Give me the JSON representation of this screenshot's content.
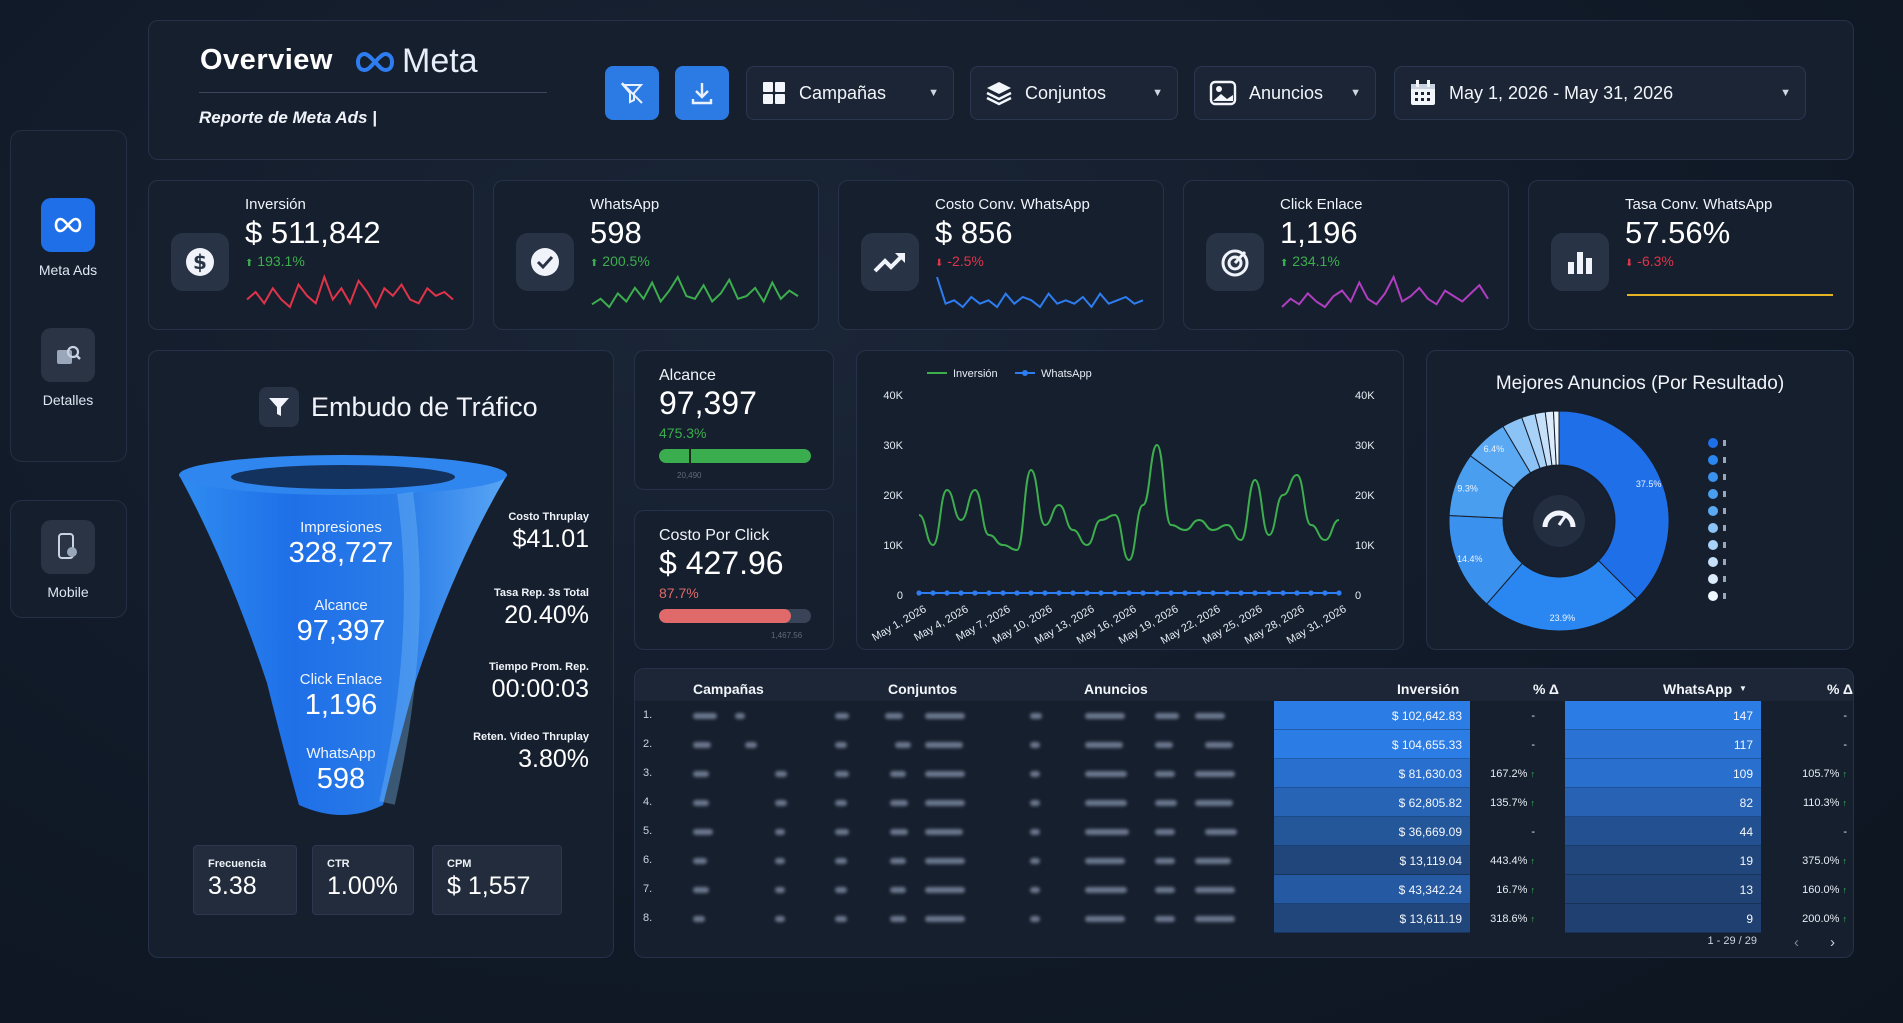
{
  "sidebar": {
    "items": [
      {
        "label": "Meta Ads",
        "icon": "meta-infinity-icon",
        "active": true
      },
      {
        "label": "Detalles",
        "icon": "details-icon",
        "active": false
      },
      {
        "label": "Mobile",
        "icon": "mobile-icon",
        "active": false
      }
    ]
  },
  "header": {
    "title": "Overview",
    "brand": "Meta",
    "subtitle": "Reporte de Meta  Ads |",
    "filter_icon": "filter-off-icon",
    "download_icon": "download-icon",
    "dropdowns": [
      {
        "label": "Campañas",
        "icon": "grid-icon"
      },
      {
        "label": "Conjuntos",
        "icon": "layers-icon"
      },
      {
        "label": "Anuncios",
        "icon": "image-icon"
      }
    ],
    "date_range": "May 1, 2026 - May 31, 2026",
    "date_icon": "calendar-icon"
  },
  "kpis": [
    {
      "label": "Inversión",
      "value": "$ 511,842",
      "delta": "193.1%",
      "direction": "up",
      "icon": "dollar-icon",
      "spark_color": "#e0344a"
    },
    {
      "label": "WhatsApp",
      "value": "598",
      "delta": "200.5%",
      "direction": "up",
      "icon": "check-icon",
      "spark_color": "#3cae4e"
    },
    {
      "label": "Costo Conv. WhatsApp",
      "value": "$ 856",
      "delta": "-2.5%",
      "direction": "down",
      "icon": "trend-up-icon",
      "spark_color": "#2d7cf0"
    },
    {
      "label": "Click Enlace",
      "value": "1,196",
      "delta": "234.1%",
      "direction": "up",
      "icon": "target-icon",
      "spark_color": "#b03ec0"
    },
    {
      "label": "Tasa Conv. WhatsApp",
      "value": "57.56%",
      "delta": "-6.3%",
      "direction": "down",
      "icon": "bar-chart-icon",
      "spark_color": "#e6b324"
    }
  ],
  "funnel": {
    "title": "Embudo de Tráfico",
    "icon": "funnel-icon",
    "stages": [
      {
        "label": "Impresiones",
        "value": "328,727"
      },
      {
        "label": "Alcance",
        "value": "97,397"
      },
      {
        "label": "Click Enlace",
        "value": "1,196"
      },
      {
        "label": "WhatsApp",
        "value": "598"
      }
    ],
    "side_metrics": [
      {
        "label": "Costo Thruplay",
        "value": "$41.01"
      },
      {
        "label": "Tasa Rep. 3s Total",
        "value": "20.40%"
      },
      {
        "label": "Tiempo Prom. Rep.",
        "value": "00:00:03"
      },
      {
        "label": "Reten. Video Thruplay",
        "value": "3.80%"
      }
    ],
    "mini_cards": [
      {
        "label": "Frecuencia",
        "value": "3.38"
      },
      {
        "label": "CTR",
        "value": "1.00%"
      },
      {
        "label": "CPM",
        "value": "$ 1,557"
      }
    ]
  },
  "metric_cards": [
    {
      "label": "Alcance",
      "value": "97,397",
      "delta": "475.3%",
      "progress": 1.0,
      "bar_color": "#3aae4f",
      "target": "20,490"
    },
    {
      "label": "Costo Por Click",
      "value": "$ 427.96",
      "delta": "87.7%",
      "progress": 0.87,
      "bar_color": "#e06a6a",
      "target": "1,467.56"
    }
  ],
  "chart_data": {
    "type": "line",
    "x": [
      "May 1, 2026",
      "May 2, 2026",
      "May 3, 2026",
      "May 4, 2026",
      "May 5, 2026",
      "May 6, 2026",
      "May 7, 2026",
      "May 8, 2026",
      "May 9, 2026",
      "May 10, 2026",
      "May 11, 2026",
      "May 12, 2026",
      "May 13, 2026",
      "May 14, 2026",
      "May 15, 2026",
      "May 16, 2026",
      "May 17, 2026",
      "May 18, 2026",
      "May 19, 2026",
      "May 20, 2026",
      "May 21, 2026",
      "May 22, 2026",
      "May 23, 2026",
      "May 24, 2026",
      "May 25, 2026",
      "May 26, 2026",
      "May 27, 2026",
      "May 28, 2026",
      "May 29, 2026",
      "May 30, 2026",
      "May 31, 2026"
    ],
    "tick_labels": [
      "May 1, 2026",
      "May 4, 2026",
      "May 7, 2026",
      "May 10, 2026",
      "May 13, 2026",
      "May 16, 2026",
      "May 19, 2026",
      "May 22, 2026",
      "May 25, 2026",
      "May 28, 2026",
      "May 31, 2026"
    ],
    "series": [
      {
        "name": "Inversión",
        "color": "#3cae4e",
        "axis": "left",
        "values": [
          16000,
          10000,
          21000,
          15000,
          21000,
          12000,
          10000,
          9000,
          25000,
          14000,
          18000,
          13000,
          10000,
          15000,
          16000,
          7000,
          18000,
          30000,
          14000,
          13000,
          15000,
          13000,
          14000,
          11000,
          23000,
          12000,
          20000,
          24000,
          14000,
          11000,
          15000
        ]
      },
      {
        "name": "WhatsApp",
        "color": "#2d7cf0",
        "axis": "right",
        "values": [
          1,
          1,
          1,
          1,
          1,
          1,
          1,
          1,
          1,
          1,
          1,
          1,
          1,
          1,
          1,
          1,
          1,
          1,
          1,
          1,
          1,
          1,
          1,
          1,
          1,
          1,
          1,
          1,
          1,
          1,
          1
        ]
      }
    ],
    "y_left": [
      0,
      40000
    ],
    "y_right": [
      0,
      40000
    ],
    "y_ticks": [
      "0",
      "10K",
      "20K",
      "30K",
      "40K"
    ],
    "legend": "top-left",
    "grid": false
  },
  "best_ads": {
    "title": "Mejores Anuncios (Por Resultado)",
    "center_icon": "gauge-icon",
    "slices": [
      37.5,
      23.9,
      14.4,
      9.3,
      6.4,
      3.0,
      2.0,
      1.5,
      1.2,
      0.8
    ],
    "slice_labels": [
      "37.5%",
      "23.9%",
      "14.4%",
      "9.3%",
      "6.4%"
    ],
    "colors": [
      "#1f6fe8",
      "#2a86f0",
      "#3b92ee",
      "#4a9ef0",
      "#5aa9f2",
      "#8cc3f6",
      "#a9d2f8",
      "#c6e0fa",
      "#dcecfc",
      "#eef6fe"
    ]
  },
  "table": {
    "headers": [
      "Campañas",
      "Conjuntos",
      "Anuncios",
      "Inversión",
      "% Δ",
      "WhatsApp",
      "% Δ"
    ],
    "rows": [
      {
        "n": "1.",
        "inv": "$ 102,642.83",
        "inv_pct": "-",
        "wa": "147",
        "wa_pct": "-",
        "inv_shade": 1.0,
        "wa_shade": 1.0
      },
      {
        "n": "2.",
        "inv": "$ 104,655.33",
        "inv_pct": "-",
        "wa": "117",
        "wa_pct": "-",
        "inv_shade": 1.0,
        "wa_shade": 0.85
      },
      {
        "n": "3.",
        "inv": "$ 81,630.03",
        "inv_pct": "167.2%",
        "wa": "109",
        "wa_pct": "105.7%",
        "inv_shade": 0.8,
        "wa_shade": 0.8
      },
      {
        "n": "4.",
        "inv": "$ 62,805.82",
        "inv_pct": "135.7%",
        "wa": "82",
        "wa_pct": "110.3%",
        "inv_shade": 0.62,
        "wa_shade": 0.6
      },
      {
        "n": "5.",
        "inv": "$ 36,669.09",
        "inv_pct": "-",
        "wa": "44",
        "wa_pct": "-",
        "inv_shade": 0.4,
        "wa_shade": 0.32
      },
      {
        "n": "6.",
        "inv": "$ 13,119.04",
        "inv_pct": "443.4%",
        "wa": "19",
        "wa_pct": "375.0%",
        "inv_shade": 0.15,
        "wa_shade": 0.15
      },
      {
        "n": "7.",
        "inv": "$ 43,342.24",
        "inv_pct": "16.7%",
        "wa": "13",
        "wa_pct": "160.0%",
        "inv_shade": 0.45,
        "wa_shade": 0.1
      },
      {
        "n": "8.",
        "inv": "$ 13,611.19",
        "inv_pct": "318.6%",
        "wa": "9",
        "wa_pct": "200.0%",
        "inv_shade": 0.15,
        "wa_shade": 0.07
      }
    ],
    "pagination": "1 - 29 / 29"
  }
}
